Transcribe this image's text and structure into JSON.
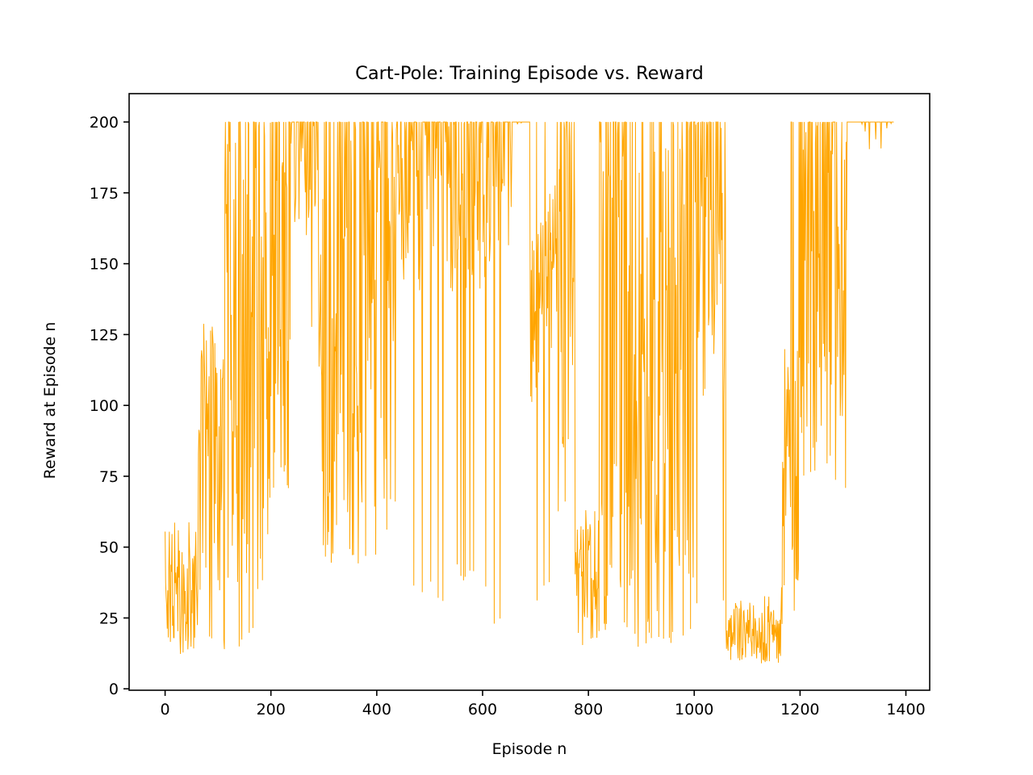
{
  "chart_data": {
    "type": "line",
    "title": "Cart-Pole: Training Episode vs. Reward",
    "xlabel": "Episode n",
    "ylabel": "Reward at Episode n",
    "xlim": [
      -68,
      1445
    ],
    "ylim": [
      -0.5,
      210
    ],
    "xticks": [
      0,
      200,
      400,
      600,
      800,
      1000,
      1200,
      1400
    ],
    "yticks": [
      0,
      25,
      50,
      75,
      100,
      125,
      150,
      175,
      200
    ],
    "grid": false,
    "legend": "none",
    "series": [
      {
        "color": "#FFA500",
        "x_start": 0,
        "x_end": 1377,
        "phases": [
          {
            "x_from": 0,
            "x_to": 60,
            "low": 12,
            "high": 60,
            "top_prob": 0.0,
            "dip_prob": 0.0,
            "dip_to": 12
          },
          {
            "x_from": 60,
            "x_to": 110,
            "low": 18,
            "high": 130,
            "top_prob": 0.0,
            "dip_prob": 0.05,
            "dip_to": 13
          },
          {
            "x_from": 110,
            "x_to": 200,
            "low": 35,
            "high": 200,
            "top_prob": 0.15,
            "dip_prob": 0.08,
            "dip_to": 14
          },
          {
            "x_from": 200,
            "x_to": 235,
            "low": 65,
            "high": 200,
            "top_prob": 0.2,
            "dip_prob": 0.03,
            "dip_to": 60
          },
          {
            "x_from": 235,
            "x_to": 290,
            "low": 160,
            "high": 200,
            "top_prob": 0.5,
            "dip_prob": 0.05,
            "dip_to": 120
          },
          {
            "x_from": 290,
            "x_to": 420,
            "low": 55,
            "high": 200,
            "top_prob": 0.35,
            "dip_prob": 0.06,
            "dip_to": 44
          },
          {
            "x_from": 420,
            "x_to": 440,
            "low": 120,
            "high": 200,
            "top_prob": 0.3,
            "dip_prob": 0.05,
            "dip_to": 59
          },
          {
            "x_from": 440,
            "x_to": 530,
            "low": 140,
            "high": 200,
            "top_prob": 0.45,
            "dip_prob": 0.06,
            "dip_to": 30
          },
          {
            "x_from": 530,
            "x_to": 620,
            "low": 140,
            "high": 200,
            "top_prob": 0.45,
            "dip_prob": 0.06,
            "dip_to": 36
          },
          {
            "x_from": 620,
            "x_to": 660,
            "low": 150,
            "high": 200,
            "top_prob": 0.6,
            "dip_prob": 0.05,
            "dip_to": 21
          },
          {
            "x_from": 660,
            "x_to": 690,
            "low": 199,
            "high": 200,
            "top_prob": 0.95,
            "dip_prob": 0.0,
            "dip_to": 199
          },
          {
            "x_from": 690,
            "x_to": 720,
            "low": 100,
            "high": 165,
            "top_prob": 0.05,
            "dip_prob": 0.15,
            "dip_to": 30
          },
          {
            "x_from": 720,
            "x_to": 740,
            "low": 120,
            "high": 178,
            "top_prob": 0.0,
            "dip_prob": 0.1,
            "dip_to": 30
          },
          {
            "x_from": 740,
            "x_to": 775,
            "low": 60,
            "high": 200,
            "top_prob": 0.3,
            "dip_prob": 0.08,
            "dip_to": 57
          },
          {
            "x_from": 775,
            "x_to": 820,
            "low": 11,
            "high": 65,
            "top_prob": 0.0,
            "dip_prob": 0.0,
            "dip_to": 11
          },
          {
            "x_from": 820,
            "x_to": 890,
            "low": 19,
            "high": 200,
            "top_prob": 0.2,
            "dip_prob": 0.05,
            "dip_to": 19
          },
          {
            "x_from": 890,
            "x_to": 960,
            "low": 13,
            "high": 200,
            "top_prob": 0.15,
            "dip_prob": 0.05,
            "dip_to": 13
          },
          {
            "x_from": 960,
            "x_to": 1000,
            "low": 25,
            "high": 200,
            "top_prob": 0.2,
            "dip_prob": 0.05,
            "dip_to": 14
          },
          {
            "x_from": 1000,
            "x_to": 1060,
            "low": 100,
            "high": 200,
            "top_prob": 0.25,
            "dip_prob": 0.04,
            "dip_to": 30
          },
          {
            "x_from": 1060,
            "x_to": 1165,
            "low": 9,
            "high": 33,
            "top_prob": 0.0,
            "dip_prob": 0.04,
            "dip_to": 9
          },
          {
            "x_from": 1165,
            "x_to": 1200,
            "low": 20,
            "high": 120,
            "top_prob": 0.05,
            "dip_prob": 0.05,
            "dip_to": 14
          },
          {
            "x_from": 1200,
            "x_to": 1290,
            "low": 70,
            "high": 200,
            "top_prob": 0.35,
            "dip_prob": 0.04,
            "dip_to": 72
          },
          {
            "x_from": 1290,
            "x_to": 1377,
            "low": 190,
            "high": 200,
            "top_prob": 0.9,
            "dip_prob": 0.03,
            "dip_to": 141
          }
        ]
      }
    ]
  }
}
